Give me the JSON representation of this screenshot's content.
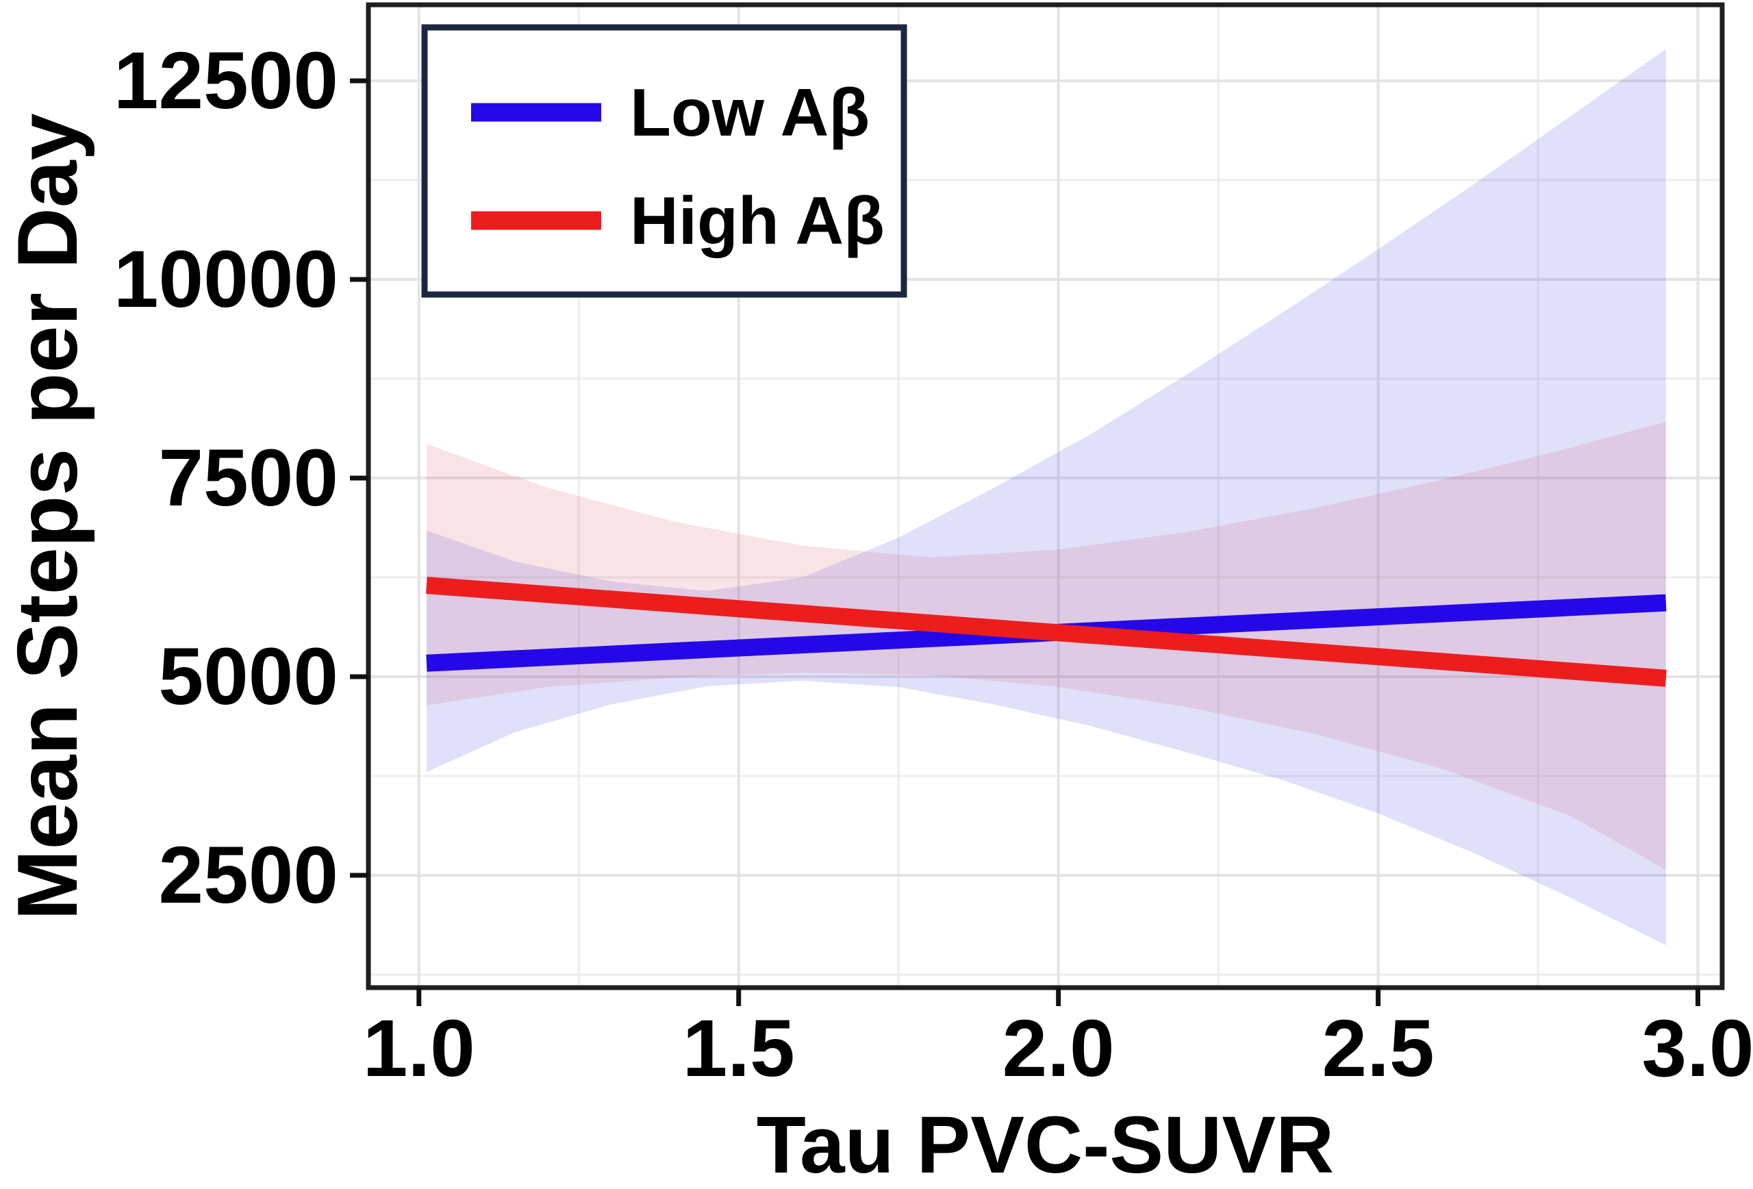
{
  "figure": {
    "background": "#FFFFFF",
    "frame_color": "#1F1F1F",
    "grid_major_color": "#E3E3E3",
    "grid_minor_color": "#EDEDED",
    "tick_color": "#111111",
    "text_color": "#000000",
    "legend": {
      "border_color": "#1B2742",
      "background": "#FFFFFF",
      "position": "top-left"
    }
  },
  "chart_data": {
    "type": "line",
    "title": "",
    "xlabel": "Tau PVC-SUVR",
    "ylabel": "Mean Steps per Day",
    "xlim": [
      0.921,
      3.038
    ],
    "ylim": [
      1086,
      13457
    ],
    "grid": true,
    "legend_position": "top-left",
    "x_major_ticks": [
      1.0,
      1.5,
      2.0,
      2.5,
      3.0
    ],
    "x_tick_labels": [
      "1.0",
      "1.5",
      "2.0",
      "2.5",
      "3.0"
    ],
    "x_minor_ticks": [
      1.25,
      1.75,
      2.25,
      2.75
    ],
    "y_major_ticks": [
      2500,
      5000,
      7500,
      10000,
      12500
    ],
    "y_tick_labels": [
      "2500",
      "5000",
      "7500",
      "10000",
      "12500"
    ],
    "y_minor_ticks": [
      1250,
      3750,
      6250,
      8750,
      11250
    ],
    "series": [
      {
        "name": "Low Aβ",
        "color": "#2508E8",
        "band_color": "#6666E8",
        "band_opacity": 0.2,
        "x": [
          1.012,
          2.95
        ],
        "y": [
          5170,
          5930
        ],
        "band": {
          "x": [
            1.012,
            1.15,
            1.3,
            1.45,
            1.6,
            1.75,
            1.9,
            2.05,
            2.2,
            2.35,
            2.5,
            2.65,
            2.8,
            2.95
          ],
          "upper": [
            6840,
            6450,
            6200,
            6080,
            6250,
            6750,
            7380,
            8050,
            8800,
            9580,
            10380,
            11200,
            12050,
            12900
          ],
          "lower": [
            3800,
            4300,
            4650,
            4880,
            4950,
            4870,
            4650,
            4380,
            4050,
            3700,
            3280,
            2780,
            2220,
            1620
          ]
        }
      },
      {
        "name": "High Aβ",
        "color": "#EE1D1D",
        "band_color": "#D96A78",
        "band_opacity": 0.18,
        "x": [
          1.012,
          2.95
        ],
        "y": [
          6150,
          4980
        ],
        "band": {
          "x": [
            1.012,
            1.2,
            1.4,
            1.6,
            1.8,
            2.0,
            2.2,
            2.4,
            2.6,
            2.8,
            2.95
          ],
          "upper": [
            7930,
            7380,
            6950,
            6650,
            6500,
            6600,
            6820,
            7120,
            7480,
            7880,
            8210
          ],
          "lower": [
            4640,
            4870,
            4990,
            5050,
            5020,
            4870,
            4620,
            4280,
            3840,
            3250,
            2570
          ]
        }
      }
    ]
  }
}
